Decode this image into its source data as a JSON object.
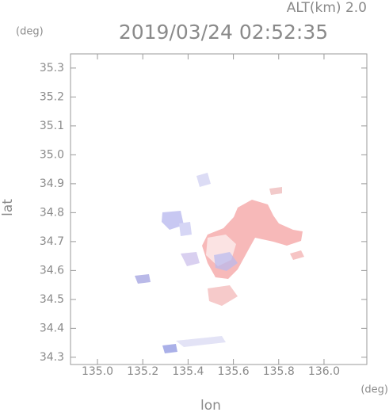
{
  "chart_data": {
    "type": "map",
    "title": "2019/03/24 02:52:35",
    "altitude_label": "ALT(km) 2.0",
    "y_unit": "(deg)",
    "x_unit": "(deg)",
    "xlabel": "lon",
    "ylabel": "lat",
    "xlim": [
      134.881,
      136.189
    ],
    "ylim": [
      34.275,
      35.349
    ],
    "xticks": [
      {
        "value": 135,
        "label": "135.0"
      },
      135.2,
      135.4,
      135.6,
      135.8,
      {
        "value": 136,
        "label": "136.0"
      }
    ],
    "yticks": [
      35.3,
      35.2,
      35.1,
      {
        "value": 35,
        "label": "35.0"
      },
      34.9,
      34.8,
      34.7,
      34.6,
      34.5,
      34.4,
      34.3
    ]
  }
}
